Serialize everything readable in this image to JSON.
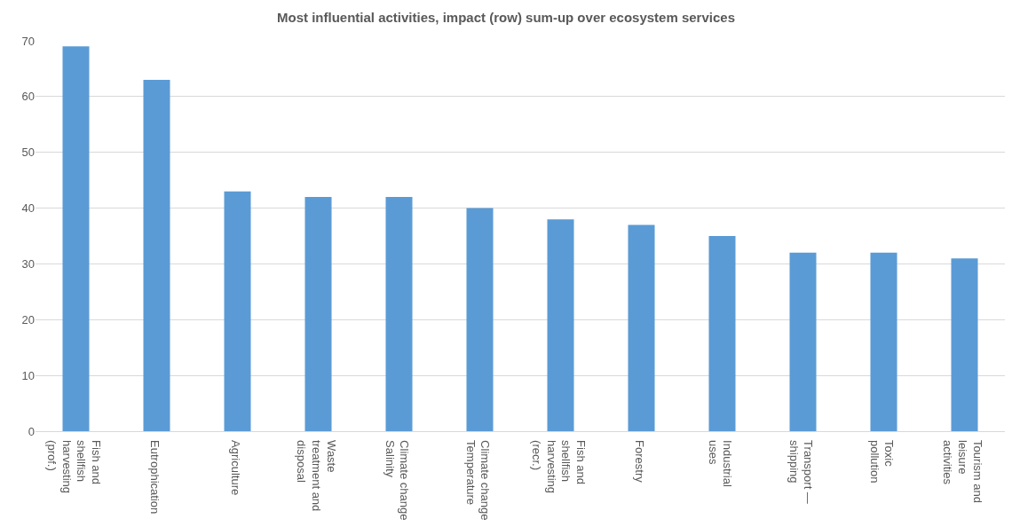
{
  "chart_data": {
    "type": "bar",
    "title": "Most influential activities, impact (row) sum-up over ecosystem services",
    "categories": [
      "Fish and shellfish harvesting (prof.)",
      "Eutrophication",
      "Agriculture",
      "Waste treatment and disposal",
      "Climate change Salinity",
      "Climate change Temperature",
      "Fish and shellfish harvesting (recr.)",
      "Forestry",
      "Industrial uses",
      "Transport — shipping",
      "Toxic pollution",
      "Tourism and leisure activities"
    ],
    "values": [
      69,
      63,
      43,
      42,
      42,
      40,
      38,
      37,
      35,
      32,
      32,
      31
    ],
    "color": "#5b9bd5",
    "ylim": [
      0,
      70
    ],
    "yticks": [
      0,
      10,
      20,
      30,
      40,
      50,
      60,
      70
    ],
    "grid": "y"
  }
}
